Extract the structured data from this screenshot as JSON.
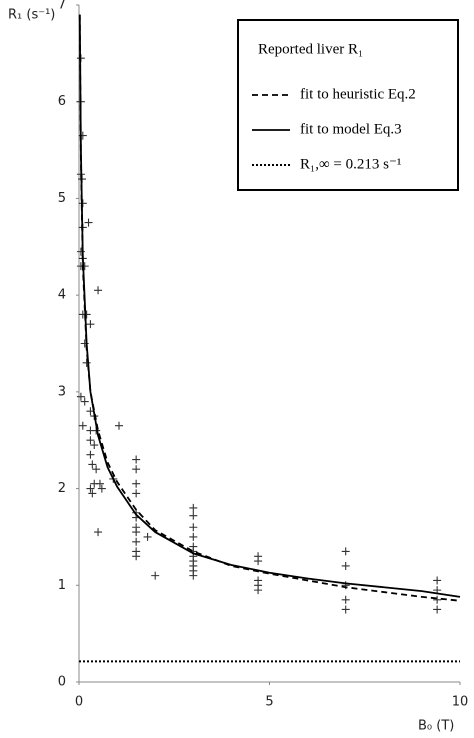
{
  "chart_data": {
    "type": "scatter",
    "y_label": "R₁ (s⁻¹)",
    "x_label": "B₀ (T)",
    "xlim": [
      0,
      10
    ],
    "ylim": [
      0,
      7
    ],
    "xticks": [
      0,
      5,
      10
    ],
    "yticks": [
      0,
      1,
      2,
      3,
      4,
      5,
      6,
      7
    ],
    "legend_title": "Reported liver R₁",
    "legend": "upper right",
    "series": [
      {
        "name": "Reported liver R₁",
        "style": "markers",
        "color": "#333333",
        "x": [
          0.05,
          0.05,
          0.1,
          0.05,
          0.08,
          0.1,
          0.1,
          0.25,
          0.05,
          0.1,
          0.05,
          0.15,
          0.5,
          0.1,
          0.2,
          0.3,
          0.15,
          0.2,
          0.05,
          0.15,
          0.3,
          0.4,
          0.1,
          0.3,
          0.45,
          0.3,
          0.4,
          0.3,
          0.35,
          0.45,
          0.4,
          0.3,
          0.35,
          0.55,
          0.6,
          0.9,
          1.05,
          0.5,
          1.5,
          1.5,
          1.5,
          1.5,
          1.5,
          1.5,
          1.5,
          1.5,
          1.5,
          1.5,
          1.5,
          1.8,
          2.0,
          3.0,
          3.0,
          3.0,
          3.0,
          3.0,
          3.0,
          3.0,
          3.0,
          3.0,
          3.0,
          3.0,
          4.7,
          4.7,
          4.7,
          4.7,
          4.7,
          7.0,
          7.0,
          7.0,
          7.0,
          7.0,
          9.4,
          9.4,
          9.4,
          9.4
        ],
        "values": [
          6.45,
          6.0,
          5.65,
          5.25,
          5.2,
          4.95,
          4.7,
          4.75,
          4.45,
          4.38,
          4.3,
          4.3,
          4.05,
          3.8,
          3.8,
          3.7,
          3.5,
          3.3,
          2.95,
          2.9,
          2.8,
          2.75,
          2.65,
          2.6,
          2.6,
          2.5,
          2.45,
          2.35,
          2.25,
          2.2,
          2.05,
          2.0,
          1.95,
          2.05,
          2.0,
          2.1,
          2.65,
          1.55,
          2.3,
          2.2,
          2.05,
          1.95,
          1.75,
          1.7,
          1.6,
          1.55,
          1.45,
          1.35,
          1.3,
          1.5,
          1.1,
          1.8,
          1.72,
          1.6,
          1.5,
          1.4,
          1.35,
          1.3,
          1.25,
          1.2,
          1.15,
          1.1,
          1.3,
          1.25,
          1.05,
          1.0,
          0.95,
          1.35,
          1.2,
          1.0,
          0.85,
          0.75,
          1.05,
          0.95,
          0.85,
          0.75
        ]
      },
      {
        "name": "fit to heuristic Eq.2",
        "style": "dashed",
        "color": "#000000",
        "x": [
          0.02,
          0.05,
          0.1,
          0.2,
          0.3,
          0.5,
          0.75,
          1,
          1.5,
          2,
          3,
          4,
          5,
          6,
          7,
          8,
          9,
          10
        ],
        "values": [
          6.9,
          5.4,
          4.3,
          3.45,
          3.0,
          2.6,
          2.27,
          2.07,
          1.78,
          1.57,
          1.35,
          1.2,
          1.12,
          1.05,
          0.98,
          0.93,
          0.88,
          0.84
        ]
      },
      {
        "name": "fit to model Eq.3",
        "style": "solid",
        "color": "#000000",
        "x": [
          0.02,
          0.05,
          0.1,
          0.2,
          0.3,
          0.5,
          0.75,
          1,
          1.5,
          2,
          3,
          4,
          5,
          6,
          7,
          8,
          9,
          10
        ],
        "values": [
          6.9,
          5.5,
          4.4,
          3.5,
          3.0,
          2.55,
          2.22,
          2.02,
          1.73,
          1.55,
          1.33,
          1.21,
          1.13,
          1.07,
          1.02,
          0.98,
          0.94,
          0.88
        ]
      },
      {
        "name": "R₁,∞ = 0.213 s⁻¹",
        "style": "dotted",
        "color": "#000000",
        "x": [
          0,
          10
        ],
        "values": [
          0.213,
          0.213
        ]
      }
    ]
  }
}
